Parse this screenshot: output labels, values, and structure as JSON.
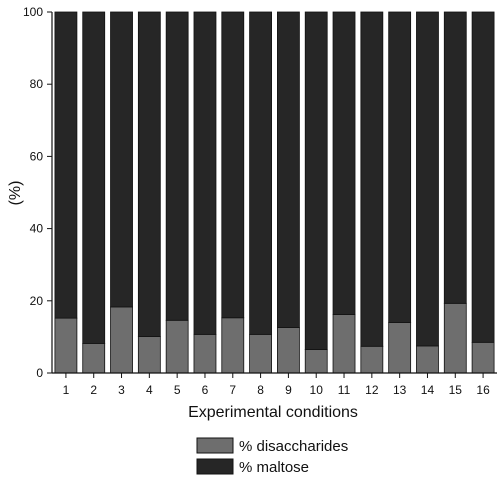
{
  "chart_data": {
    "type": "bar",
    "stacked": true,
    "xlabel": "Experimental conditions",
    "ylabel": "(%)",
    "ylim": [
      0,
      100
    ],
    "yticks": [
      0,
      20,
      40,
      60,
      80,
      100
    ],
    "categories": [
      "1",
      "2",
      "3",
      "4",
      "5",
      "6",
      "7",
      "8",
      "9",
      "10",
      "11",
      "12",
      "13",
      "14",
      "15",
      "16"
    ],
    "series": [
      {
        "name": "% disaccharides",
        "color": "#6e6e6e",
        "values": [
          15.2,
          8.2,
          18.3,
          10.1,
          14.6,
          10.7,
          15.3,
          10.7,
          12.6,
          6.5,
          16.2,
          7.4,
          14.0,
          7.5,
          19.3,
          8.5
        ]
      },
      {
        "name": "% maltose",
        "color": "#262626",
        "values": [
          84.8,
          91.8,
          81.7,
          89.9,
          85.4,
          89.3,
          84.7,
          89.3,
          87.4,
          93.5,
          83.8,
          92.6,
          86.0,
          92.5,
          80.7,
          91.5
        ]
      }
    ],
    "legend": "bottom-center",
    "grid": false
  }
}
